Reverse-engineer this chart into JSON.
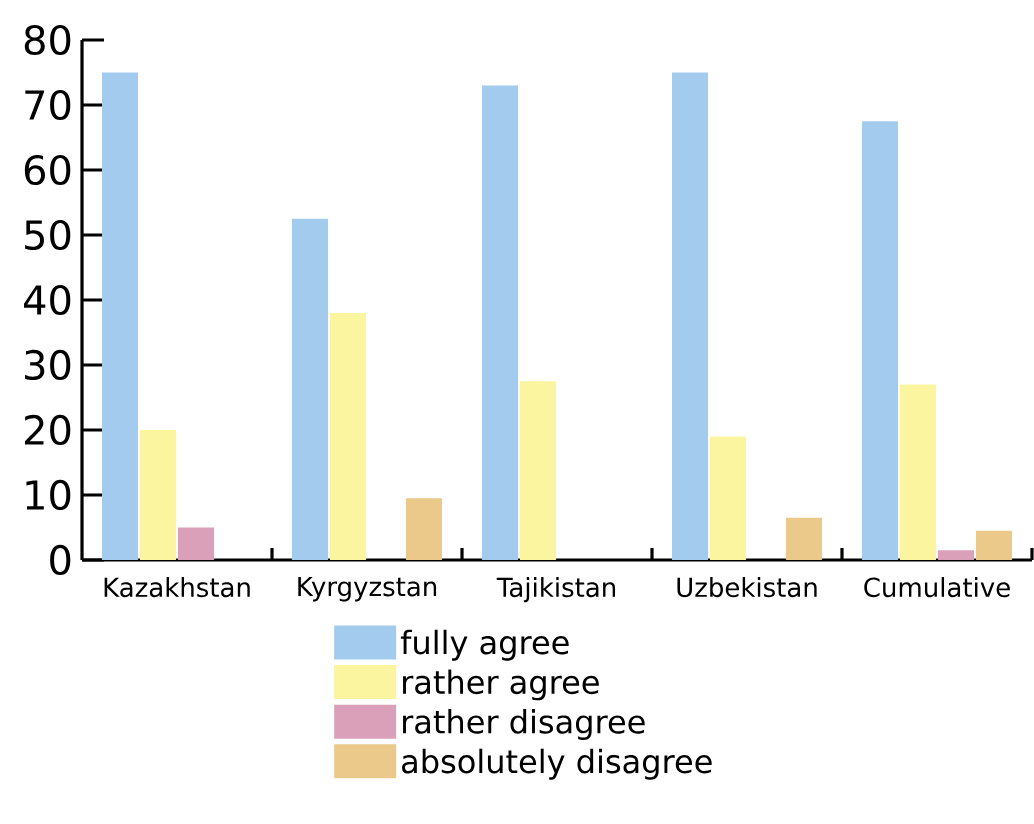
{
  "chart_data": {
    "type": "bar",
    "categories": [
      "Kazakhstan",
      "Kyrgyzstan",
      "Tajikistan",
      "Uzbekistan",
      "Cumulative"
    ],
    "series": [
      {
        "name": "fully agree",
        "color": "#a3cbed",
        "values": [
          75,
          52.5,
          73,
          75,
          67.5
        ]
      },
      {
        "name": "rather agree",
        "color": "#faf59e",
        "values": [
          20,
          38,
          27.5,
          19,
          27
        ]
      },
      {
        "name": "rather disagree",
        "color": "#dba0b9",
        "values": [
          5,
          0,
          0,
          0,
          1.5
        ]
      },
      {
        "name": "absolutely disagree",
        "color": "#eac98a",
        "values": [
          0,
          9.5,
          0,
          6.5,
          4.5
        ]
      }
    ],
    "ylim": [
      0,
      80
    ],
    "yticks": [
      0,
      10,
      20,
      30,
      40,
      50,
      60,
      70,
      80
    ],
    "grid": false,
    "legend": "bottom"
  }
}
